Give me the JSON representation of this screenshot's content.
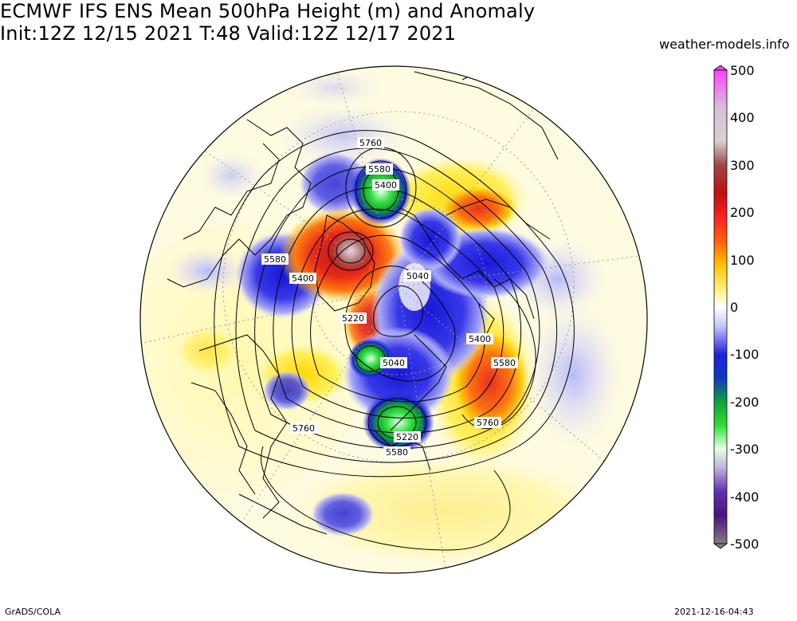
{
  "title_line1": "ECMWF IFS ENS Mean 500hPa Height (m) and Anomaly",
  "title_line2": "Init:12Z 12/15 2021  T:48 Valid:12Z 12/17 2021",
  "site": "weather-models.info",
  "footer_left": "GrADS/COLA",
  "footer_right": "2021-12-16-04:43",
  "colorbar": {
    "ticks": [
      "500",
      "400",
      "300",
      "200",
      "100",
      "0",
      "-100",
      "-200",
      "-300",
      "-400",
      "-500"
    ],
    "colors": [
      "#ff40ff",
      "#d8c8d8",
      "#a04040",
      "#e02020",
      "#ff6010",
      "#ffd000",
      "#fff8a0",
      "#ffffff",
      "#c8c8ff",
      "#2020e0",
      "#10c040",
      "#e0ffe0",
      "#6020a0",
      "#606060"
    ]
  },
  "contour_labels": [
    {
      "text": "5760",
      "id": "lbl-a"
    },
    {
      "text": "5580",
      "id": "lbl-b"
    },
    {
      "text": "5400",
      "id": "lbl-c"
    },
    {
      "text": "5580",
      "id": "lbl-d"
    },
    {
      "text": "5400",
      "id": "lbl-e"
    },
    {
      "text": "5040",
      "id": "lbl-f"
    },
    {
      "text": "5220",
      "id": "lbl-g"
    },
    {
      "text": "5040",
      "id": "lbl-h"
    },
    {
      "text": "5400",
      "id": "lbl-i"
    },
    {
      "text": "5580",
      "id": "lbl-j"
    },
    {
      "text": "5760",
      "id": "lbl-k"
    },
    {
      "text": "5760",
      "id": "lbl-l"
    },
    {
      "text": "5220",
      "id": "lbl-m"
    },
    {
      "text": "5580",
      "id": "lbl-n"
    }
  ]
}
